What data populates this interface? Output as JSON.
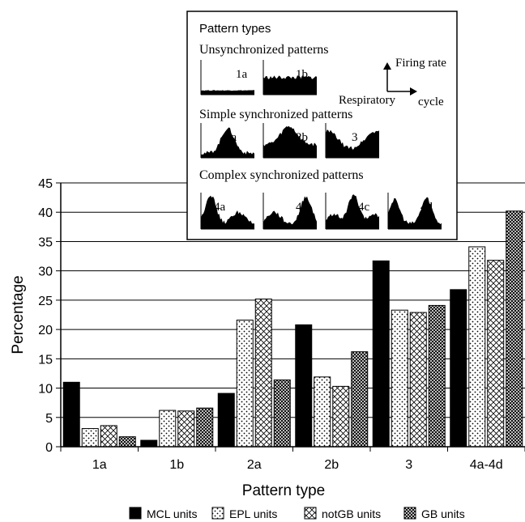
{
  "chart_data": {
    "type": "bar",
    "xlabel": "Pattern type",
    "ylabel": "Percentage",
    "ylim": [
      0,
      45
    ],
    "yticks": [
      0,
      5,
      10,
      15,
      20,
      25,
      30,
      35,
      40,
      45
    ],
    "grid": true,
    "legend_position": "bottom",
    "categories": [
      "1a",
      "1b",
      "2a",
      "2b",
      "3",
      "4a-4d"
    ],
    "series": [
      {
        "name": "MCL units",
        "values": [
          11.0,
          1.1,
          9.1,
          20.8,
          31.7,
          26.8
        ],
        "fill": "solid"
      },
      {
        "name": "EPL units",
        "values": [
          3.1,
          6.2,
          21.6,
          11.9,
          23.3,
          34.1
        ],
        "fill": "dots"
      },
      {
        "name": "notGB units",
        "values": [
          3.6,
          6.1,
          25.2,
          10.3,
          22.9,
          31.8
        ],
        "fill": "diagonal-cross"
      },
      {
        "name": "GB units",
        "values": [
          1.7,
          6.6,
          11.4,
          16.2,
          24.1,
          40.2
        ],
        "fill": "crosshatch"
      }
    ],
    "inset": {
      "title": "Pattern types",
      "axis_y_label": "Firing rate",
      "axis_x_label_1": "Respiratory",
      "axis_x_label_2": "cycle",
      "groups": [
        {
          "label": "Unsynchronized patterns",
          "panels": [
            "1a",
            "1b"
          ]
        },
        {
          "label": "Simple synchronized patterns",
          "panels": [
            "2a",
            "2b",
            "3"
          ]
        },
        {
          "label": "Complex synchronized patterns",
          "panels": [
            "4a",
            "4b",
            "4c",
            "4d"
          ]
        }
      ]
    }
  },
  "colors": {
    "bar_stroke": "#000000",
    "solid": "#000000",
    "background": "#ffffff"
  }
}
